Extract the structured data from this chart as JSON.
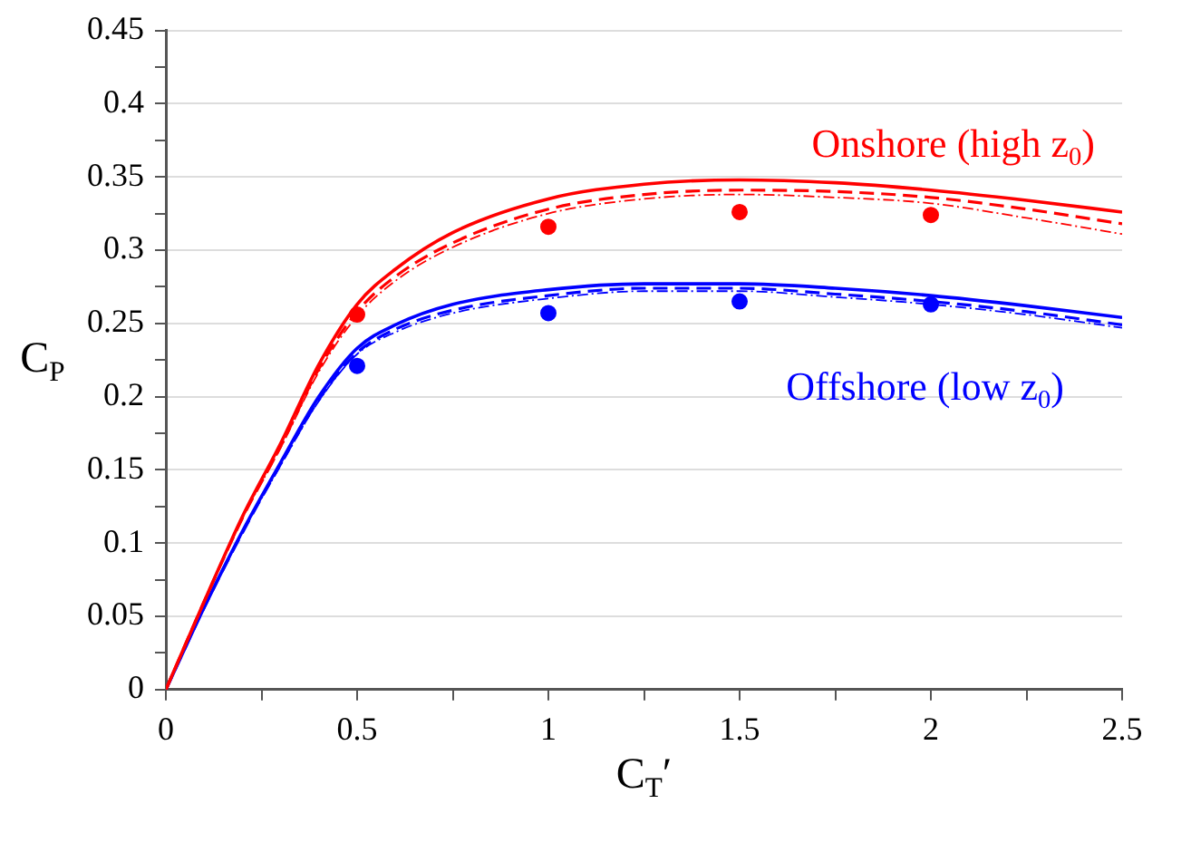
{
  "chart_data": {
    "type": "line",
    "xlabel": "C$_{T}$′",
    "ylabel": "C$_{P}$",
    "xlim": [
      0,
      2.5
    ],
    "ylim": [
      0,
      0.45
    ],
    "xticks": [
      0,
      {
        "value": 0.25,
        "label": null
      },
      0.5,
      {
        "value": 0.75,
        "label": null
      },
      1,
      {
        "value": 1.25,
        "label": null
      },
      1.5,
      {
        "value": 1.75,
        "label": null
      },
      2,
      {
        "value": 2.25,
        "label": null
      },
      2.5
    ],
    "yticks": [
      0,
      {
        "value": 0.025,
        "label": null
      },
      0.05,
      {
        "value": 0.075,
        "label": null
      },
      0.1,
      {
        "value": 0.125,
        "label": null
      },
      0.15,
      {
        "value": 0.175,
        "label": null
      },
      0.2,
      {
        "value": 0.225,
        "label": null
      },
      0.25,
      {
        "value": 0.275,
        "label": null
      },
      0.3,
      {
        "value": 0.325,
        "label": null
      },
      0.35,
      {
        "value": 0.375,
        "label": null
      },
      0.4,
      {
        "value": 0.425,
        "label": null
      },
      0.45
    ],
    "grid": "y",
    "legend": false,
    "series": [
      {
        "color": "#ff0000",
        "line_style": "solid",
        "x": [
          0,
          0.1,
          0.2,
          0.3,
          0.4,
          0.5,
          0.6,
          0.75,
          1,
          1.25,
          1.5,
          1.75,
          2,
          2.25,
          2.5
        ],
        "values": [
          0,
          0.06,
          0.118,
          0.168,
          0.222,
          0.263,
          0.287,
          0.312,
          0.335,
          0.345,
          0.348,
          0.346,
          0.341,
          0.334,
          0.326
        ]
      },
      {
        "color": "#ff0000",
        "line_style": "dashed",
        "x": [
          0,
          0.1,
          0.2,
          0.3,
          0.4,
          0.5,
          0.6,
          0.75,
          1,
          1.25,
          1.5,
          1.75,
          2,
          2.25,
          2.5
        ],
        "values": [
          0,
          0.06,
          0.117,
          0.166,
          0.219,
          0.258,
          0.282,
          0.305,
          0.328,
          0.338,
          0.341,
          0.34,
          0.336,
          0.328,
          0.318
        ]
      },
      {
        "color": "#ff0000",
        "line_style": "dotted",
        "x": [
          0,
          0.1,
          0.2,
          0.3,
          0.4,
          0.5,
          0.6,
          0.75,
          1,
          1.25,
          1.5,
          1.75,
          2,
          2.25,
          2.5
        ],
        "values": [
          0,
          0.06,
          0.117,
          0.165,
          0.217,
          0.255,
          0.279,
          0.302,
          0.325,
          0.335,
          0.338,
          0.336,
          0.332,
          0.322,
          0.311
        ]
      },
      {
        "color": "#0000ff",
        "line_style": "solid",
        "x": [
          0,
          0.1,
          0.2,
          0.3,
          0.4,
          0.5,
          0.6,
          0.75,
          1,
          1.25,
          1.5,
          1.75,
          2,
          2.25,
          2.5
        ],
        "values": [
          0,
          0.056,
          0.108,
          0.155,
          0.2,
          0.233,
          0.249,
          0.263,
          0.273,
          0.277,
          0.277,
          0.274,
          0.269,
          0.262,
          0.254
        ]
      },
      {
        "color": "#0000ff",
        "line_style": "dashed",
        "x": [
          0,
          0.1,
          0.2,
          0.3,
          0.4,
          0.5,
          0.6,
          0.75,
          1,
          1.25,
          1.5,
          1.75,
          2,
          2.25,
          2.5
        ],
        "values": [
          0,
          0.056,
          0.107,
          0.154,
          0.198,
          0.23,
          0.246,
          0.259,
          0.269,
          0.274,
          0.274,
          0.27,
          0.265,
          0.258,
          0.249
        ]
      },
      {
        "color": "#0000ff",
        "line_style": "dotted",
        "x": [
          0,
          0.1,
          0.2,
          0.3,
          0.4,
          0.5,
          0.6,
          0.75,
          1,
          1.25,
          1.5,
          1.75,
          2,
          2.25,
          2.5
        ],
        "values": [
          0,
          0.056,
          0.107,
          0.153,
          0.197,
          0.229,
          0.244,
          0.257,
          0.267,
          0.272,
          0.272,
          0.268,
          0.263,
          0.256,
          0.247
        ]
      },
      {
        "type": "scatter",
        "marker": "circle",
        "color": "#ff0000",
        "x": [
          0.5,
          1,
          1.5,
          2
        ],
        "values": [
          0.256,
          0.316,
          0.326,
          0.324
        ]
      },
      {
        "type": "scatter",
        "marker": "circle",
        "color": "#0000ff",
        "x": [
          0.5,
          1,
          1.5,
          2
        ],
        "values": [
          0.221,
          0.257,
          0.265,
          0.263
        ]
      }
    ],
    "annotations": [
      "Onshore (high z$_{0}$)",
      "Offshore (low z$_{0}$)"
    ]
  }
}
